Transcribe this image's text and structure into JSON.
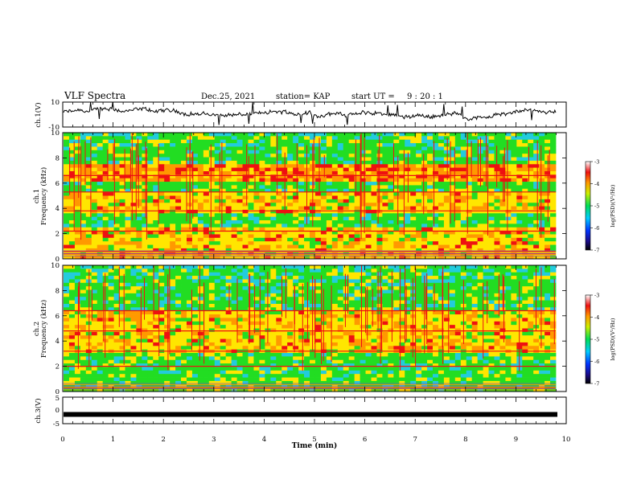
{
  "header": {
    "title": "VLF Spectra",
    "date": "Dec.25, 2021",
    "station": "station= KAP",
    "start_label": "start  UT  =",
    "start_time": "9 : 20 : 1"
  },
  "chart_data": [
    {
      "type": "line",
      "panel": "ch1-waveform",
      "ylabel": "ch.1(V)",
      "ylim": [
        -10,
        10
      ],
      "yticks": [
        "10",
        "-10"
      ],
      "xlim": [
        0,
        10
      ],
      "color": "#000000"
    },
    {
      "type": "heatmap",
      "panel": "ch1-spectrogram",
      "ylabel_line1": "ch.1",
      "ylabel_line2": "Frequency (kHz)",
      "ylim": [
        0,
        10
      ],
      "yticks": [
        "0",
        "2",
        "4",
        "6",
        "8",
        "10"
      ],
      "xlim": [
        0,
        10
      ],
      "colorbar": {
        "label": "log(PSD)(V²/Hz)",
        "range": [
          -7,
          -3
        ],
        "ticks": [
          "-3",
          "-4",
          "-5",
          "-6",
          "-7"
        ]
      },
      "lines_khz": [
        0.4,
        0.6,
        2.2,
        3.8,
        5.3,
        6.6
      ]
    },
    {
      "type": "heatmap",
      "panel": "ch2-spectrogram",
      "ylabel_line1": "ch.2",
      "ylabel_line2": "Frequency (kHz)",
      "ylim": [
        0,
        10
      ],
      "yticks": [
        "0",
        "2",
        "4",
        "6",
        "8",
        "10"
      ],
      "xlim": [
        0,
        10
      ],
      "colorbar": {
        "label": "log(PSD)(V²/Hz)",
        "range": [
          -7,
          -3
        ],
        "ticks": [
          "-3",
          "-4",
          "-5",
          "-6",
          "-7"
        ]
      },
      "lines_khz": [
        0.3,
        2.0,
        3.2,
        4.8,
        6.4
      ]
    },
    {
      "type": "line",
      "panel": "ch3-waveform",
      "ylabel": "ch.3(V)",
      "ylim": [
        -5,
        5
      ],
      "yticks": [
        "5",
        "0",
        "-5"
      ],
      "xlim": [
        0,
        10
      ],
      "xlabel": "Time  (min)",
      "xticks": [
        "0",
        "1",
        "2",
        "3",
        "4",
        "5",
        "6",
        "7",
        "8",
        "9",
        "10"
      ],
      "level": -1.5,
      "color": "#000000"
    }
  ],
  "colors": {
    "green": "#22dd22",
    "yellow": "#ffe600",
    "orange": "#ff9900",
    "red": "#ee1111",
    "cyan": "#22ccdd",
    "purple": "#8855aa"
  }
}
